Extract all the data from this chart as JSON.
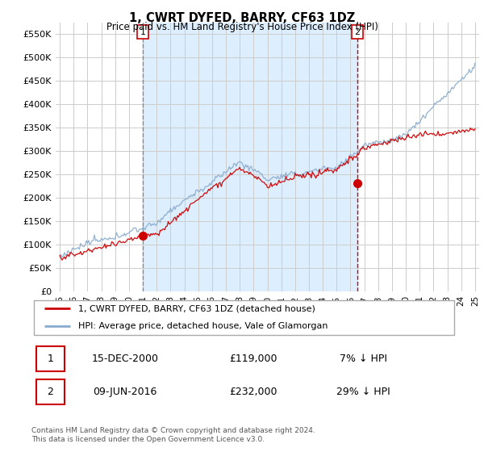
{
  "title": "1, CWRT DYFED, BARRY, CF63 1DZ",
  "subtitle": "Price paid vs. HM Land Registry's House Price Index (HPI)",
  "ylim": [
    0,
    575000
  ],
  "yticks": [
    0,
    50000,
    100000,
    150000,
    200000,
    250000,
    300000,
    350000,
    400000,
    450000,
    500000,
    550000
  ],
  "line1_color": "#cc0000",
  "line2_color": "#88aacc",
  "sale1_year": 2001.0,
  "sale1_val": 119000,
  "sale2_year": 2016.5,
  "sale2_val": 232000,
  "legend_line1": "1, CWRT DYFED, BARRY, CF63 1DZ (detached house)",
  "legend_line2": "HPI: Average price, detached house, Vale of Glamorgan",
  "annotation1": [
    "1",
    "15-DEC-2000",
    "£119,000",
    "7% ↓ HPI"
  ],
  "annotation2": [
    "2",
    "09-JUN-2016",
    "£232,000",
    "29% ↓ HPI"
  ],
  "footer": "Contains HM Land Registry data © Crown copyright and database right 2024.\nThis data is licensed under the Open Government Licence v3.0.",
  "shade_color": "#ddeeff",
  "vline1_color": "#888888",
  "vline2_color": "#cc0000"
}
